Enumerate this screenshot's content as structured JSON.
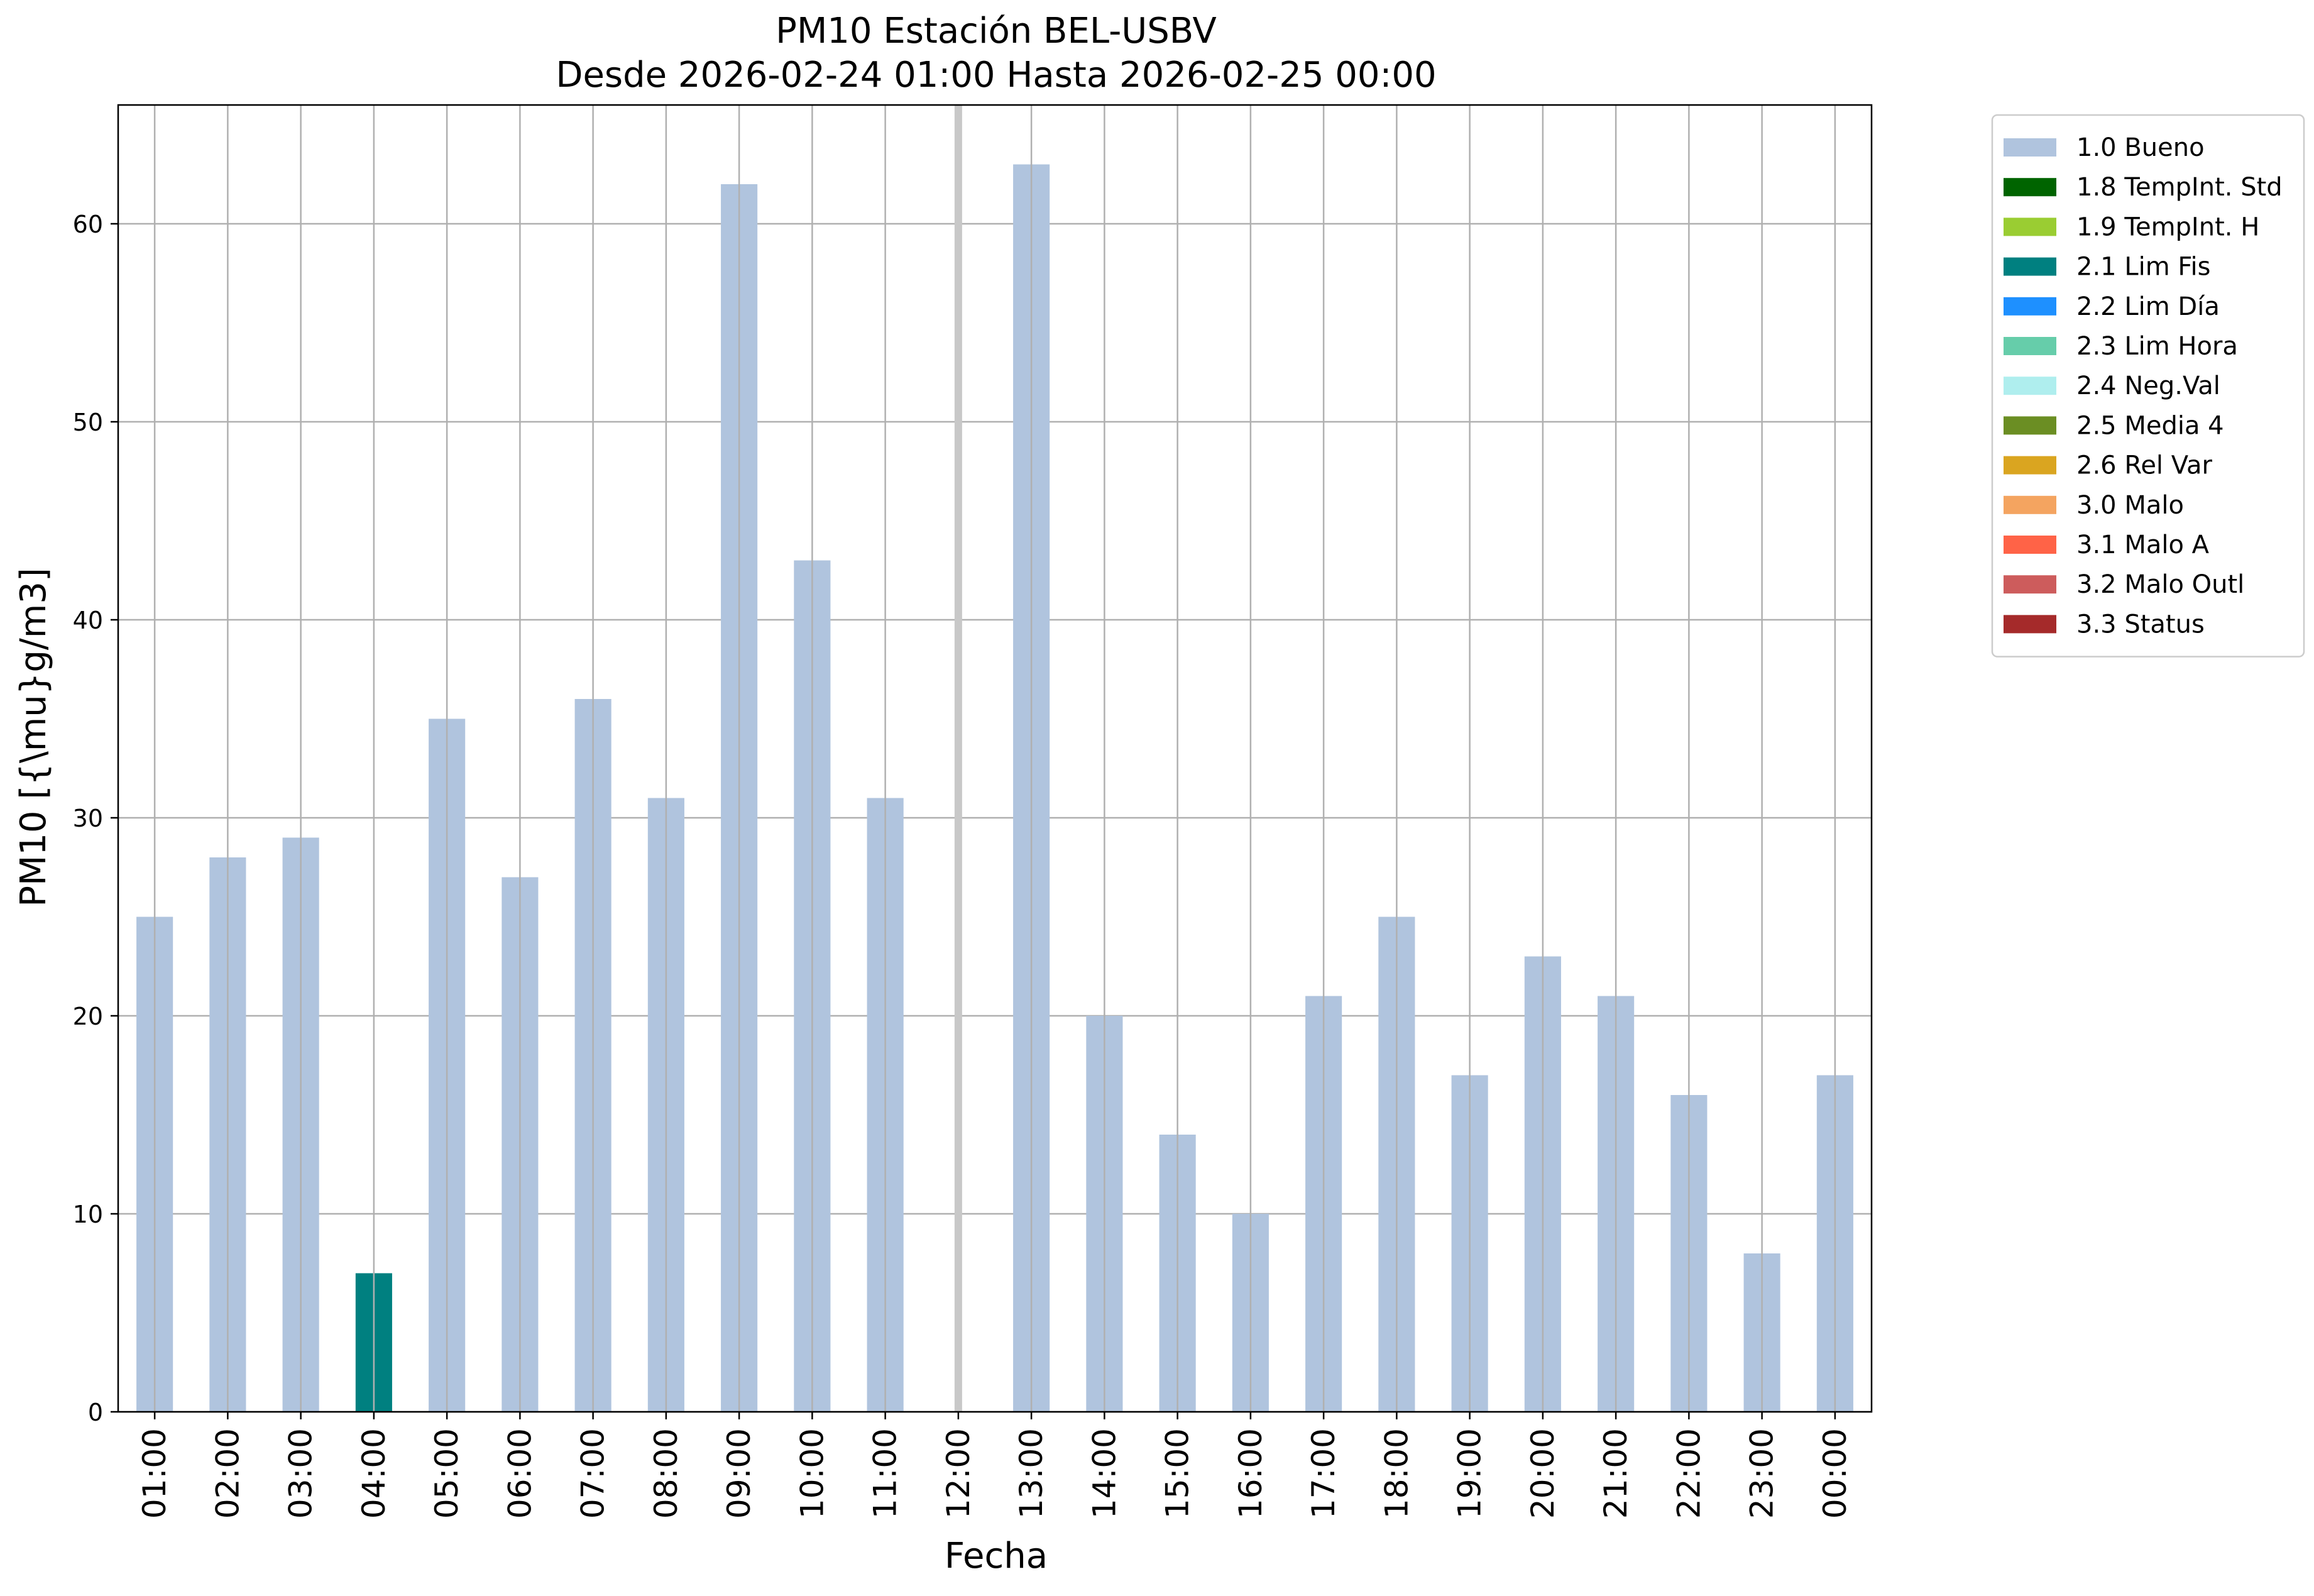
{
  "chart_data": {
    "type": "bar",
    "title": "PM10 Estación BEL-USBV",
    "subtitle": "Desde 2026-02-24 01:00 Hasta 2026-02-25 00:00",
    "xlabel": "Fecha",
    "ylabel": "PM10 [{\\mu}g/m3]",
    "ylim": [
      0,
      66
    ],
    "yticks": [
      0,
      10,
      20,
      30,
      40,
      50,
      60
    ],
    "grid": true,
    "legend_position": "outside-top-right",
    "categories": [
      "01:00",
      "02:00",
      "03:00",
      "04:00",
      "05:00",
      "06:00",
      "07:00",
      "08:00",
      "09:00",
      "10:00",
      "11:00",
      "12:00",
      "13:00",
      "14:00",
      "15:00",
      "16:00",
      "17:00",
      "18:00",
      "19:00",
      "20:00",
      "21:00",
      "22:00",
      "23:00",
      "00:00"
    ],
    "values": [
      25,
      28,
      29,
      7,
      35,
      27,
      36,
      31,
      62,
      43,
      31,
      null,
      63,
      20,
      14,
      10,
      21,
      25,
      17,
      23,
      21,
      16,
      8,
      17
    ],
    "value_flags": [
      "1.0",
      "1.0",
      "1.0",
      "2.1",
      "1.0",
      "1.0",
      "1.0",
      "1.0",
      "1.0",
      "1.0",
      "1.0",
      null,
      "1.0",
      "1.0",
      "1.0",
      "1.0",
      "1.0",
      "1.0",
      "1.0",
      "1.0",
      "1.0",
      "1.0",
      "1.0",
      "1.0"
    ],
    "missing_marker_color": "#c8c8c8",
    "legend": [
      {
        "code": "1.0",
        "label": "1.0 Bueno",
        "color": "#b0c4de"
      },
      {
        "code": "1.8",
        "label": "1.8 TempInt. Std",
        "color": "#006400"
      },
      {
        "code": "1.9",
        "label": "1.9 TempInt. H",
        "color": "#9acd32"
      },
      {
        "code": "2.1",
        "label": "2.1 Lim Fis",
        "color": "#008080"
      },
      {
        "code": "2.2",
        "label": "2.2 Lim Día",
        "color": "#1e90ff"
      },
      {
        "code": "2.3",
        "label": "2.3 Lim Hora",
        "color": "#66cdaa"
      },
      {
        "code": "2.4",
        "label": "2.4 Neg.Val",
        "color": "#afeeee"
      },
      {
        "code": "2.5",
        "label": "2.5 Media 4",
        "color": "#6b8e23"
      },
      {
        "code": "2.6",
        "label": "2.6 Rel Var",
        "color": "#daa520"
      },
      {
        "code": "3.0",
        "label": "3.0 Malo",
        "color": "#f4a460"
      },
      {
        "code": "3.1",
        "label": "3.1 Malo A",
        "color": "#ff6347"
      },
      {
        "code": "3.2",
        "label": "3.2 Malo Outl",
        "color": "#cd5c5c"
      },
      {
        "code": "3.3",
        "label": "3.3 Status",
        "color": "#a52a2a"
      }
    ]
  }
}
